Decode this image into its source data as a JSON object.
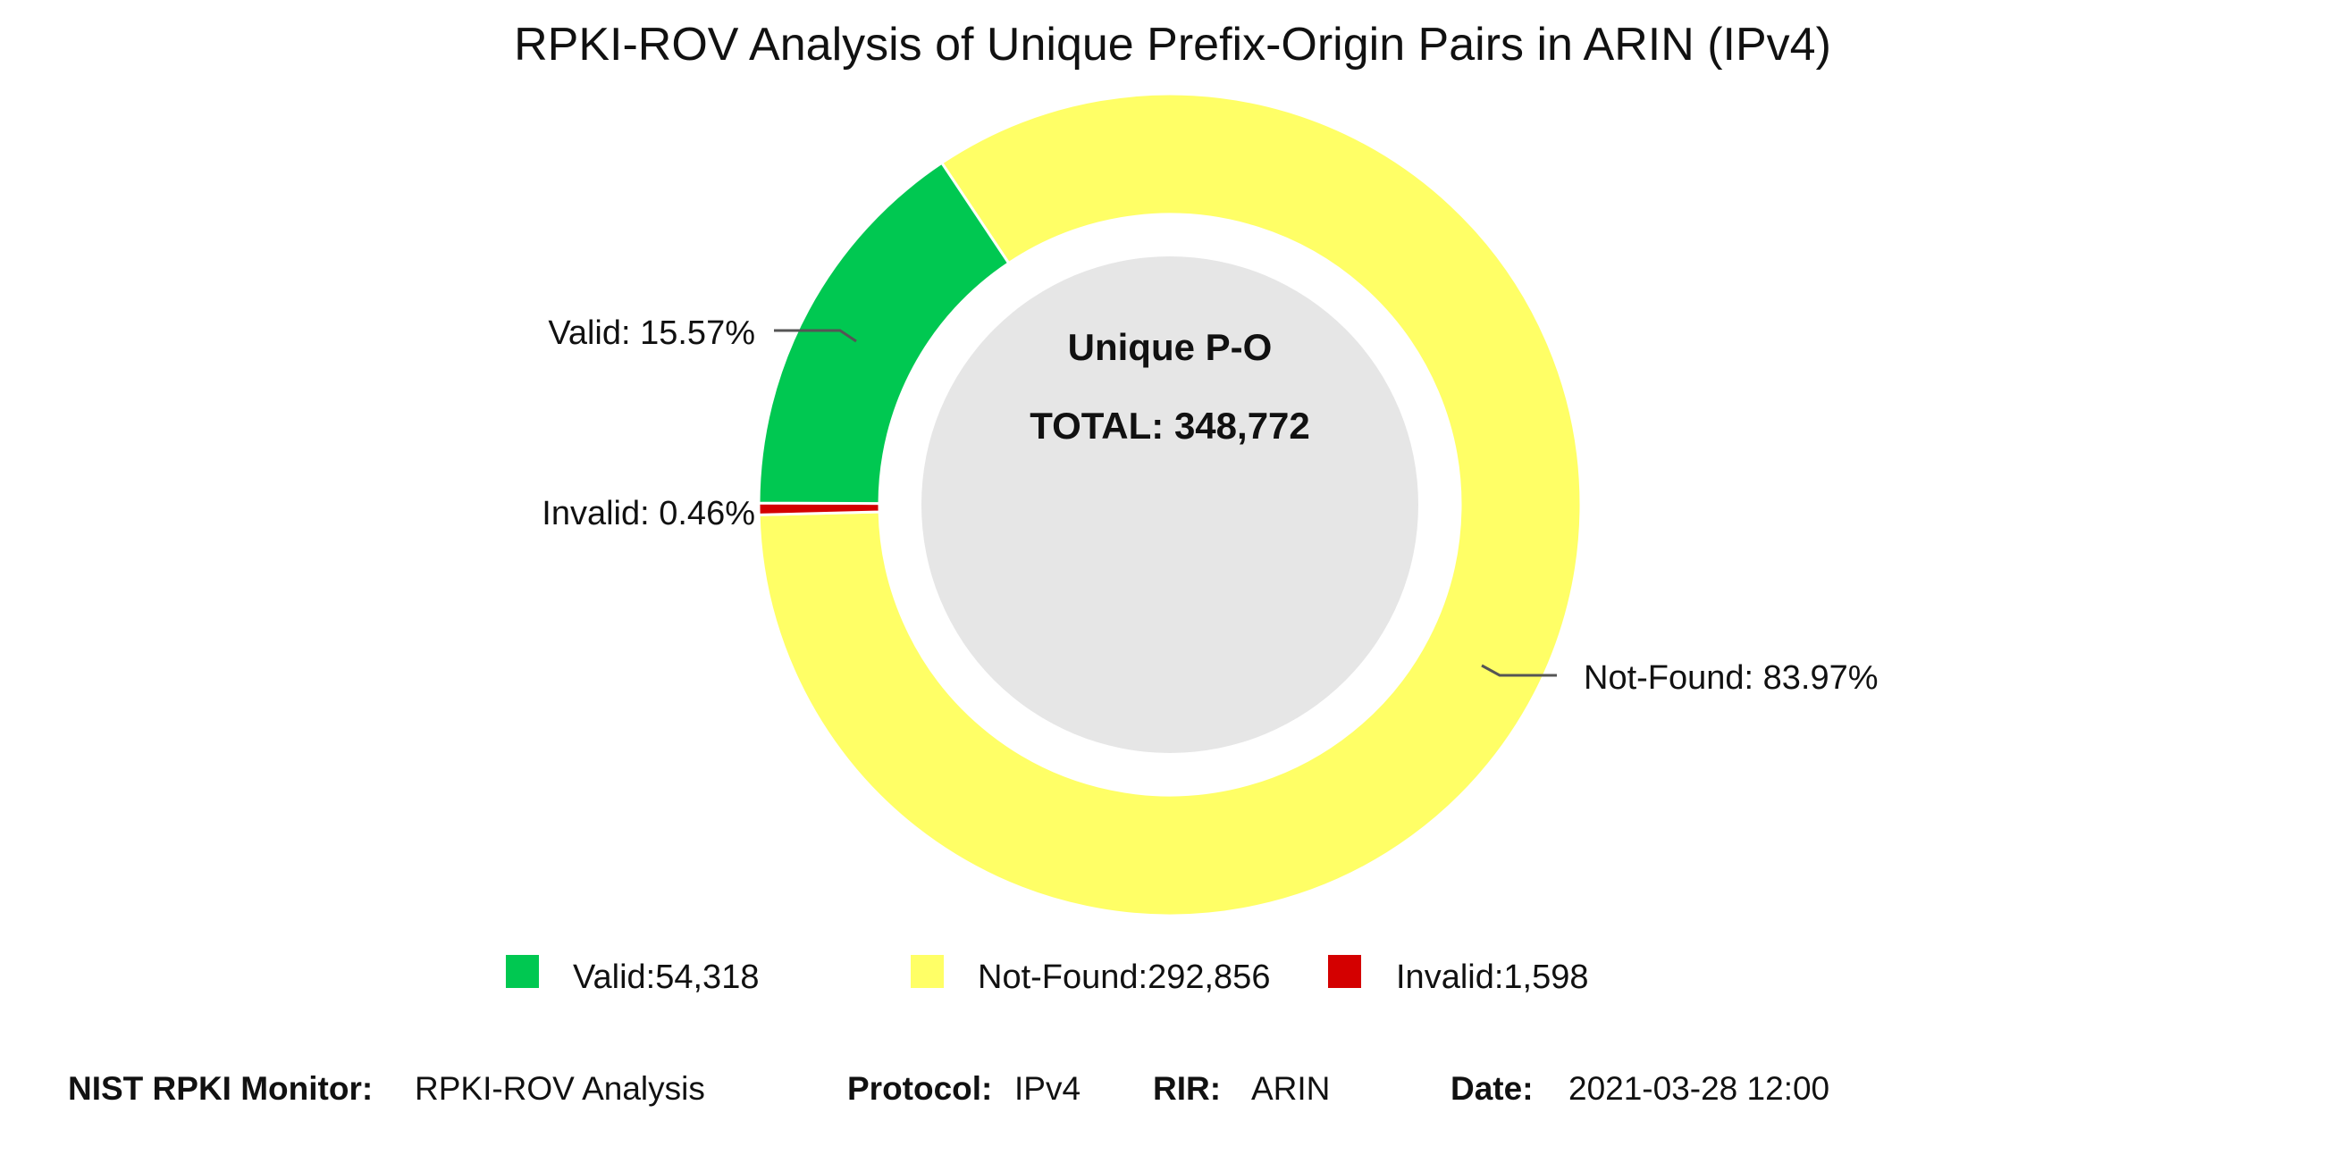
{
  "colors": {
    "valid": "#00c851",
    "not_found": "#ffff66",
    "invalid": "#d40000",
    "center_disc": "#e6e6e6",
    "leader_line": "#555555"
  },
  "chart_data": {
    "type": "pie",
    "title": "RPKI-ROV Analysis of Unique Prefix-Origin Pairs in ARIN (IPv4)",
    "center": {
      "heading": "Unique P-O",
      "total": "TOTAL: 348,772"
    },
    "slices": [
      {
        "key": "valid",
        "count": 54318,
        "percent": 15.57,
        "label": "Valid: 15.57%",
        "legend": "Valid:54,318"
      },
      {
        "key": "not_found",
        "count": 292856,
        "percent": 83.97,
        "label": "Not-Found: 83.97%",
        "legend": "Not-Found:292,856"
      },
      {
        "key": "invalid",
        "count": 1598,
        "percent": 0.46,
        "label": "Invalid: 0.46%",
        "legend": "Invalid:1,598"
      }
    ],
    "legend_placement": "bottom"
  },
  "footer": {
    "monitor_key": "NIST RPKI Monitor:",
    "monitor_val": "RPKI-ROV Analysis",
    "protocol_key": "Protocol:",
    "protocol_val": "IPv4",
    "rir_key": "RIR:",
    "rir_val": "ARIN",
    "date_key": "Date:",
    "date_val": "2021-03-28 12:00"
  }
}
